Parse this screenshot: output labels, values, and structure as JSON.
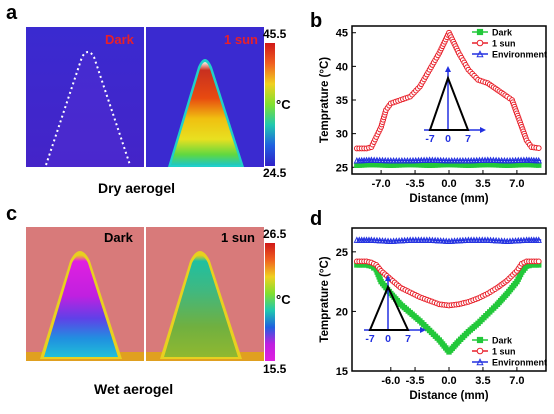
{
  "panel_labels": {
    "a": "a",
    "b": "b",
    "c": "c",
    "d": "d"
  },
  "thermal_top": {
    "left_label": "Dark",
    "right_label": "1 sun",
    "label_color": "#e8202a",
    "colorbar_max": "45.5",
    "colorbar_min": "24.5",
    "unit": "°C",
    "caption": "Dry aerogel"
  },
  "thermal_bottom": {
    "left_label": "Dark",
    "right_label": "1 sun",
    "label_color": "#000000",
    "colorbar_max": "26.5",
    "colorbar_min": "15.5",
    "unit": "°C",
    "caption": "Wet aerogel"
  },
  "chart_data": [
    {
      "id": "b",
      "type": "line",
      "xlabel": "Distance (mm)",
      "ylabel": "Temprature (°C)",
      "xlim": [
        -10,
        10
      ],
      "ylim": [
        24,
        46
      ],
      "xticks": [
        -7.0,
        -3.5,
        0.0,
        3.5,
        7.0
      ],
      "xtick_labels": [
        "-7.0",
        "-3.5",
        "0.0",
        "3.5",
        "7.0"
      ],
      "yticks": [
        25,
        30,
        35,
        40,
        45
      ],
      "ytick_labels": [
        "25",
        "30",
        "35",
        "40",
        "45"
      ],
      "legend_position": "top-right",
      "series": [
        {
          "name": "Dark",
          "color": "#22c83a",
          "marker": "square",
          "x": [
            -9.5,
            -8,
            -6,
            -4,
            -2,
            0,
            2,
            4,
            6,
            8,
            9.5
          ],
          "y": [
            25.3,
            25.4,
            25.3,
            25.4,
            25.3,
            25.4,
            25.3,
            25.4,
            25.3,
            25.4,
            25.3
          ]
        },
        {
          "name": "1 sun",
          "color": "#e8202a",
          "marker": "circle",
          "x": [
            -9.5,
            -8.5,
            -8,
            -7.5,
            -7,
            -6.5,
            -6,
            -5,
            -4,
            -3,
            -2,
            -1,
            0,
            1,
            2,
            3,
            4,
            5,
            6,
            6.5,
            7,
            7.5,
            8,
            8.5,
            9.5
          ],
          "y": [
            27.8,
            27.8,
            28.0,
            29.5,
            31.0,
            33.5,
            34.5,
            35.0,
            35.5,
            37.0,
            39.5,
            42.0,
            45.0,
            42.0,
            39.5,
            38.0,
            37.5,
            36.5,
            35.5,
            35.0,
            33.0,
            31.0,
            29.0,
            28.0,
            27.8
          ]
        },
        {
          "name": "Environment",
          "color": "#2230e0",
          "marker": "triangle",
          "x": [
            -9.5,
            -8,
            -6,
            -4,
            -2,
            0,
            2,
            4,
            6,
            8,
            9.5
          ],
          "y": [
            26.0,
            26.1,
            26.0,
            26.0,
            26.1,
            26.0,
            26.0,
            26.1,
            26.0,
            26.1,
            26.0
          ]
        }
      ],
      "inset_labels": [
        "-7",
        "0",
        "7"
      ]
    },
    {
      "id": "d",
      "type": "line",
      "xlabel": "Distance (mm)",
      "ylabel": "Temprature (°C)",
      "xlim": [
        -10,
        10
      ],
      "ylim": [
        15,
        27
      ],
      "xticks": [
        -6.0,
        -3.5,
        0.0,
        3.5,
        7.0
      ],
      "xtick_labels": [
        "-6.0",
        "-3.5",
        "0.0",
        "3.5",
        "7.0"
      ],
      "yticks": [
        15,
        20,
        25
      ],
      "ytick_labels": [
        "15",
        "20",
        "25"
      ],
      "legend_position": "bottom-right",
      "series": [
        {
          "name": "Dark",
          "color": "#22c83a",
          "marker": "square",
          "x": [
            -9.5,
            -8.5,
            -8,
            -7.5,
            -7,
            -6,
            -5,
            -4,
            -3,
            -2,
            -1,
            0,
            1,
            2,
            3,
            4,
            5,
            6,
            7,
            7.5,
            8,
            8.5,
            9.5
          ],
          "y": [
            23.9,
            23.9,
            23.8,
            23.5,
            22.5,
            21.5,
            20.6,
            19.9,
            19.2,
            18.4,
            17.6,
            16.6,
            17.5,
            18.3,
            19.0,
            19.8,
            20.6,
            21.5,
            22.5,
            23.3,
            23.8,
            23.9,
            23.9
          ]
        },
        {
          "name": "1 sun",
          "color": "#e8202a",
          "marker": "circle",
          "x": [
            -9.5,
            -8.5,
            -8,
            -7.5,
            -7,
            -6,
            -5,
            -4,
            -3,
            -2,
            -1,
            0,
            1,
            2,
            3,
            4,
            5,
            6,
            7,
            7.5,
            8,
            8.5,
            9.5
          ],
          "y": [
            24.2,
            24.2,
            24.1,
            23.9,
            23.4,
            22.7,
            22.0,
            21.6,
            21.2,
            20.9,
            20.6,
            20.5,
            20.6,
            20.8,
            21.1,
            21.5,
            22.0,
            22.6,
            23.4,
            24.0,
            24.2,
            24.2,
            24.2
          ]
        },
        {
          "name": "Environment",
          "color": "#2230e0",
          "marker": "triangle",
          "x": [
            -9.5,
            -8,
            -6,
            -4,
            -2,
            0,
            2,
            4,
            6,
            8,
            9.5
          ],
          "y": [
            26.0,
            26.0,
            25.9,
            26.0,
            26.0,
            25.9,
            26.0,
            26.0,
            25.9,
            26.0,
            26.0
          ]
        }
      ],
      "inset_labels": [
        "-7",
        "0",
        "7"
      ]
    }
  ]
}
